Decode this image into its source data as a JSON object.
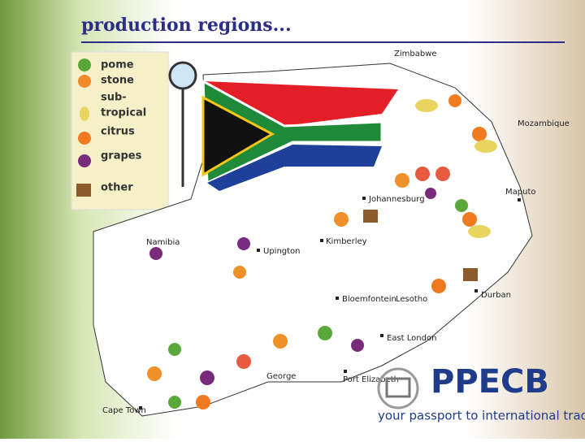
{
  "title": "production regions...",
  "legend": [
    {
      "lines": [
        "pome",
        "stone"
      ]
    },
    {
      "lines": [
        "sub-",
        "tropical"
      ]
    },
    {
      "lines": [
        "citrus"
      ]
    },
    {
      "lines": [
        "grapes"
      ]
    },
    {
      "lines": [
        "other"
      ]
    }
  ],
  "places": [
    "Zimbabwe",
    "Mozambique",
    "Maputo",
    "Johannesburg",
    "Kimberley",
    "Namibia",
    "Upington",
    "Bloemfontein",
    "Lesotho",
    "Durban",
    "East London",
    "George",
    "Port Elizabeth",
    "Cape Town"
  ],
  "logo": {
    "name": "PPECB",
    "tagline": "your passport to international trade"
  }
}
